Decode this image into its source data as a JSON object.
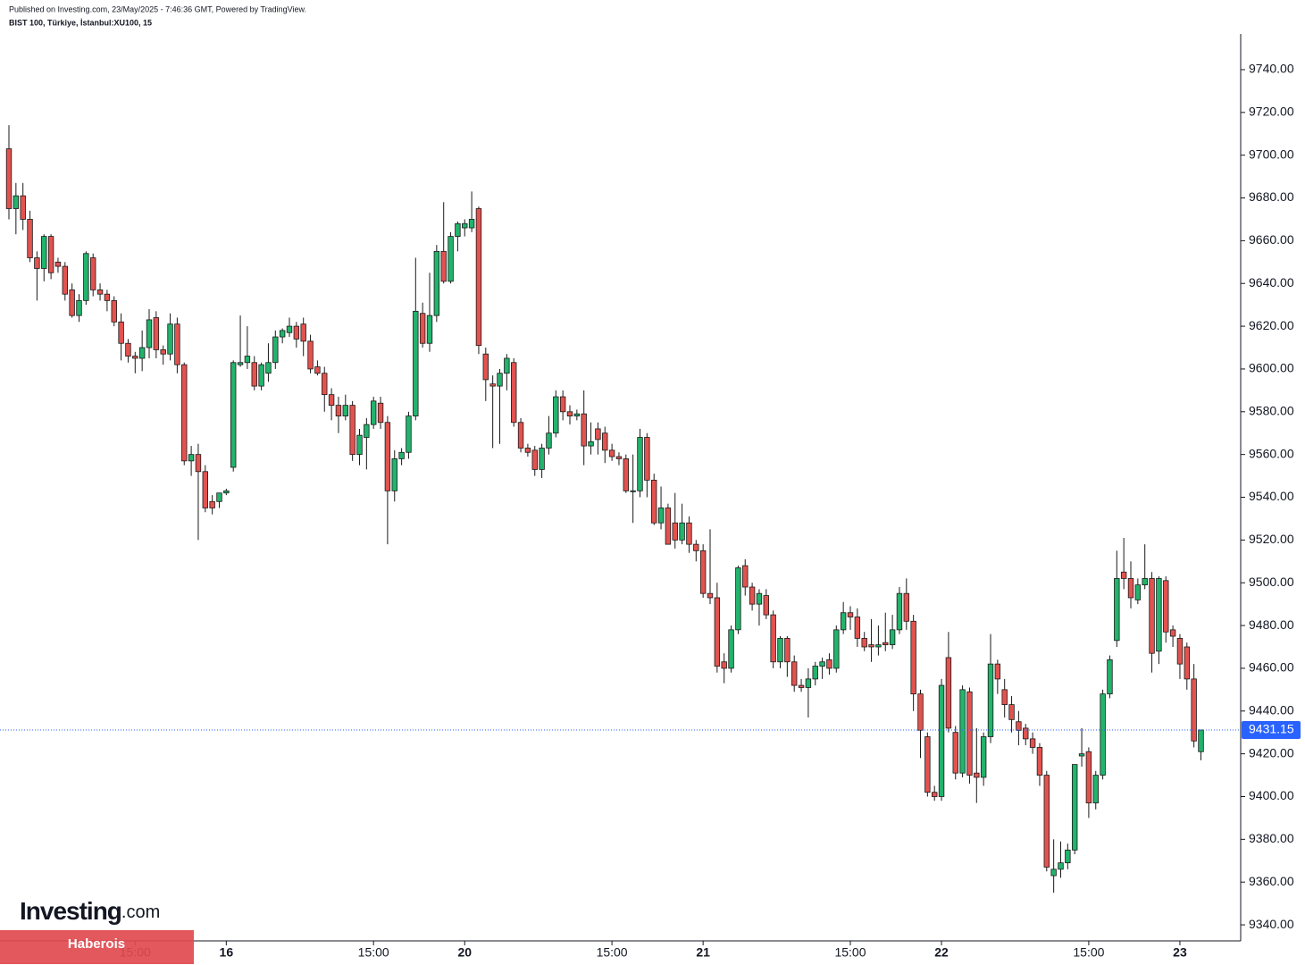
{
  "chart_data": {
    "type": "candlestick",
    "subtitle": "Published on Investing.com, 23/May/2025 - 7:46:36 GMT, Powered by TradingView.",
    "title": "BIST 100, Türkiye, İstanbul:XU100, 15",
    "up_color": "#22b36c",
    "down_color": "#e2534f",
    "border_color": "#1a1a1a",
    "last_price_color": "#2962ff",
    "ylim": [
      9332.5,
      9756.7
    ],
    "yticks": [
      {
        "value": 9340,
        "label": "9340.00"
      },
      {
        "value": 9360,
        "label": "9360.00"
      },
      {
        "value": 9380,
        "label": "9380.00"
      },
      {
        "value": 9400,
        "label": "9400.00"
      },
      {
        "value": 9420,
        "label": "9420.00"
      },
      {
        "value": 9440,
        "label": "9440.00"
      },
      {
        "value": 9460,
        "label": "9460.00"
      },
      {
        "value": 9480,
        "label": "9480.00"
      },
      {
        "value": 9500,
        "label": "9500.00"
      },
      {
        "value": 9520,
        "label": "9520.00"
      },
      {
        "value": 9540,
        "label": "9540.00"
      },
      {
        "value": 9560,
        "label": "9560.00"
      },
      {
        "value": 9580,
        "label": "9580.00"
      },
      {
        "value": 9600,
        "label": "9600.00"
      },
      {
        "value": 9620,
        "label": "9620.00"
      },
      {
        "value": 9640,
        "label": "9640.00"
      },
      {
        "value": 9660,
        "label": "9660.00"
      },
      {
        "value": 9680,
        "label": "9680.00"
      },
      {
        "value": 9700,
        "label": "9700.00"
      },
      {
        "value": 9720,
        "label": "9720.00"
      },
      {
        "value": 9740,
        "label": "9740.00"
      }
    ],
    "categories": [
      null,
      null,
      null,
      null,
      null,
      null,
      null,
      null,
      null,
      null,
      null,
      null,
      null,
      null,
      null,
      null,
      null,
      null,
      "15:00",
      null,
      null,
      null,
      null,
      null,
      null,
      null,
      null,
      null,
      null,
      null,
      null,
      "16",
      null,
      null,
      null,
      null,
      null,
      null,
      null,
      null,
      null,
      null,
      null,
      null,
      null,
      null,
      null,
      null,
      null,
      null,
      null,
      null,
      "15:00",
      null,
      null,
      null,
      null,
      null,
      null,
      null,
      null,
      null,
      null,
      null,
      null,
      "20",
      null,
      null,
      null,
      null,
      null,
      null,
      null,
      null,
      null,
      null,
      null,
      null,
      null,
      null,
      null,
      null,
      null,
      null,
      null,
      null,
      "15:00",
      null,
      null,
      null,
      null,
      null,
      null,
      null,
      null,
      null,
      null,
      null,
      null,
      "21",
      null,
      null,
      null,
      null,
      null,
      null,
      null,
      null,
      null,
      null,
      null,
      null,
      null,
      null,
      null,
      null,
      null,
      null,
      null,
      null,
      "15:00",
      null,
      null,
      null,
      null,
      null,
      null,
      null,
      null,
      null,
      null,
      null,
      null,
      "22",
      null,
      null,
      null,
      null,
      null,
      null,
      null,
      null,
      null,
      null,
      null,
      null,
      null,
      null,
      null,
      null,
      null,
      null,
      null,
      null,
      "15:00",
      null,
      null,
      null,
      null,
      null,
      null,
      null,
      null,
      null,
      null,
      null,
      null,
      "23",
      null,
      null,
      null
    ],
    "ohlc": [
      [
        9703,
        9714,
        9670,
        9675
      ],
      [
        9675,
        9687,
        9663,
        9681
      ],
      [
        9681,
        9687,
        9665,
        9670
      ],
      [
        9670,
        9674,
        9650,
        9652
      ],
      [
        9652,
        9655,
        9632,
        9647
      ],
      [
        9647,
        9663,
        9641,
        9662
      ],
      [
        9662,
        9663,
        9642,
        9645
      ],
      [
        9650,
        9652,
        9645,
        9648
      ],
      [
        9648,
        9650,
        9632,
        9635
      ],
      [
        9637,
        9640,
        9624,
        9625
      ],
      [
        9625,
        9635,
        9622,
        9632
      ],
      [
        9632,
        9655,
        9630,
        9654
      ],
      [
        9652,
        9654,
        9634,
        9637
      ],
      [
        9637,
        9640,
        9632,
        9635
      ],
      [
        9635,
        9637,
        9627,
        9632
      ],
      [
        9632,
        9634,
        9620,
        9622
      ],
      [
        9622,
        9626,
        9604,
        9612
      ],
      [
        9612,
        9614,
        9603,
        9606
      ],
      [
        9606,
        9608,
        9598,
        9605
      ],
      [
        9605,
        9618,
        9599,
        9610
      ],
      [
        9610,
        9628,
        9605,
        9623
      ],
      [
        9624,
        9627,
        9605,
        9609
      ],
      [
        9609,
        9611,
        9602,
        9607
      ],
      [
        9607,
        9626,
        9604,
        9621
      ],
      [
        9621,
        9624,
        9598,
        9602
      ],
      [
        9602,
        9603,
        9555,
        9557
      ],
      [
        9557,
        9564,
        9550,
        9560
      ],
      [
        9560,
        9565,
        9520,
        9552
      ],
      [
        9552,
        9555,
        9533,
        9535
      ],
      [
        9538,
        9541,
        9532,
        9535
      ],
      [
        9538,
        9542,
        9535,
        9542
      ],
      [
        9542,
        9544,
        9541,
        9543
      ],
      [
        9554,
        9604,
        9552,
        9603
      ],
      [
        9602,
        9625,
        9601,
        9603
      ],
      [
        9603,
        9620,
        9600,
        9606
      ],
      [
        9603,
        9606,
        9590,
        9592
      ],
      [
        9592,
        9603,
        9590,
        9602
      ],
      [
        9598,
        9612,
        9594,
        9603
      ],
      [
        9603,
        9618,
        9600,
        9615
      ],
      [
        9615,
        9619,
        9612,
        9618
      ],
      [
        9617,
        9624,
        9615,
        9620
      ],
      [
        9620,
        9622,
        9610,
        9614
      ],
      [
        9621,
        9624,
        9606,
        9613
      ],
      [
        9613,
        9616,
        9598,
        9600
      ],
      [
        9601,
        9604,
        9597,
        9598
      ],
      [
        9598,
        9601,
        9580,
        9588
      ],
      [
        9588,
        9591,
        9576,
        9583
      ],
      [
        9583,
        9587,
        9570,
        9578
      ],
      [
        9578,
        9588,
        9576,
        9583
      ],
      [
        9583,
        9585,
        9557,
        9560
      ],
      [
        9560,
        9572,
        9555,
        9569
      ],
      [
        9568,
        9577,
        9553,
        9574
      ],
      [
        9574,
        9587,
        9572,
        9585
      ],
      [
        9584,
        9587,
        9572,
        9575
      ],
      [
        9575,
        9578,
        9518,
        9543
      ],
      [
        9543,
        9562,
        9538,
        9558
      ],
      [
        9558,
        9563,
        9555,
        9561
      ],
      [
        9561,
        9580,
        9558,
        9578
      ],
      [
        9578,
        9652,
        9576,
        9627
      ],
      [
        9626,
        9631,
        9610,
        9612
      ],
      [
        9612,
        9645,
        9608,
        9625
      ],
      [
        9625,
        9658,
        9622,
        9655
      ],
      [
        9655,
        9678,
        9640,
        9641
      ],
      [
        9641,
        9664,
        9640,
        9662
      ],
      [
        9662,
        9669,
        9655,
        9668
      ],
      [
        9666,
        9670,
        9662,
        9668
      ],
      [
        9666,
        9683,
        9664,
        9670
      ],
      [
        9675,
        9676,
        9607,
        9611
      ],
      [
        9607,
        9610,
        9585,
        9595
      ],
      [
        9593,
        9597,
        9563,
        9592
      ],
      [
        9592,
        9600,
        9565,
        9598
      ],
      [
        9598,
        9607,
        9590,
        9605
      ],
      [
        9603,
        9605,
        9573,
        9575
      ],
      [
        9575,
        9577,
        9561,
        9563
      ],
      [
        9563,
        9565,
        9559,
        9561
      ],
      [
        9562,
        9564,
        9550,
        9553
      ],
      [
        9553,
        9565,
        9549,
        9563
      ],
      [
        9563,
        9578,
        9560,
        9570
      ],
      [
        9570,
        9590,
        9568,
        9587
      ],
      [
        9587,
        9590,
        9576,
        9580
      ],
      [
        9580,
        9583,
        9574,
        9578
      ],
      [
        9578,
        9581,
        9576,
        9579
      ],
      [
        9579,
        9590,
        9555,
        9564
      ],
      [
        9564,
        9575,
        9560,
        9566
      ],
      [
        9572,
        9575,
        9560,
        9567
      ],
      [
        9570,
        9573,
        9556,
        9562
      ],
      [
        9562,
        9565,
        9557,
        9559
      ],
      [
        9559,
        9561,
        9555,
        9558
      ],
      [
        9558,
        9560,
        9542,
        9543
      ],
      [
        9543,
        9560,
        9528,
        9543
      ],
      [
        9543,
        9572,
        9540,
        9568
      ],
      [
        9568,
        9570,
        9540,
        9548
      ],
      [
        9548,
        9551,
        9527,
        9528
      ],
      [
        9528,
        9545,
        9525,
        9535
      ],
      [
        9535,
        9537,
        9518,
        9518
      ],
      [
        9528,
        9542,
        9516,
        9520
      ],
      [
        9520,
        9537,
        9518,
        9528
      ],
      [
        9528,
        9531,
        9514,
        9518
      ],
      [
        9518,
        9520,
        9510,
        9515
      ],
      [
        9515,
        9518,
        9493,
        9495
      ],
      [
        9495,
        9525,
        9490,
        9493
      ],
      [
        9493,
        9500,
        9458,
        9461
      ],
      [
        9463,
        9467,
        9453,
        9460
      ],
      [
        9460,
        9480,
        9458,
        9478
      ],
      [
        9478,
        9508,
        9476,
        9507
      ],
      [
        9508,
        9511,
        9494,
        9498
      ],
      [
        9498,
        9500,
        9487,
        9490
      ],
      [
        9490,
        9497,
        9480,
        9495
      ],
      [
        9494,
        9497,
        9483,
        9485
      ],
      [
        9485,
        9487,
        9460,
        9463
      ],
      [
        9463,
        9475,
        9460,
        9474
      ],
      [
        9474,
        9475,
        9456,
        9463
      ],
      [
        9463,
        9466,
        9449,
        9452
      ],
      [
        9452,
        9455,
        9449,
        9451
      ],
      [
        9451,
        9460,
        9437,
        9455
      ],
      [
        9455,
        9463,
        9452,
        9461
      ],
      [
        9461,
        9465,
        9455,
        9463
      ],
      [
        9464,
        9467,
        9457,
        9460
      ],
      [
        9460,
        9480,
        9458,
        9478
      ],
      [
        9478,
        9491,
        9476,
        9486
      ],
      [
        9486,
        9489,
        9478,
        9484
      ],
      [
        9484,
        9488,
        9470,
        9474
      ],
      [
        9474,
        9477,
        9468,
        9470
      ],
      [
        9471,
        9483,
        9463,
        9470
      ],
      [
        9470,
        9480,
        9466,
        9471
      ],
      [
        9472,
        9486,
        9468,
        9471
      ],
      [
        9471,
        9485,
        9469,
        9478
      ],
      [
        9478,
        9498,
        9476,
        9495
      ],
      [
        9495,
        9502,
        9478,
        9482
      ],
      [
        9482,
        9485,
        9440,
        9448
      ],
      [
        9448,
        9450,
        9418,
        9431
      ],
      [
        9428,
        9430,
        9400,
        9402
      ],
      [
        9402,
        9405,
        9398,
        9400
      ],
      [
        9400,
        9455,
        9398,
        9452
      ],
      [
        9465,
        9477,
        9430,
        9432
      ],
      [
        9430,
        9433,
        9408,
        9411
      ],
      [
        9411,
        9452,
        9409,
        9450
      ],
      [
        9449,
        9451,
        9406,
        9410
      ],
      [
        9411,
        9432,
        9397,
        9409
      ],
      [
        9409,
        9430,
        9405,
        9428
      ],
      [
        9428,
        9476,
        9425,
        9462
      ],
      [
        9462,
        9464,
        9448,
        9455
      ],
      [
        9450,
        9455,
        9437,
        9443
      ],
      [
        9443,
        9447,
        9430,
        9436
      ],
      [
        9435,
        9440,
        9424,
        9431
      ],
      [
        9432,
        9434,
        9424,
        9427
      ],
      [
        9427,
        9430,
        9420,
        9423
      ],
      [
        9423,
        9425,
        9405,
        9410
      ],
      [
        9410,
        9412,
        9365,
        9367
      ],
      [
        9363,
        9380,
        9355,
        9366
      ],
      [
        9366,
        9379,
        9362,
        9369
      ],
      [
        9369,
        9378,
        9366,
        9375
      ],
      [
        9375,
        9415,
        9373,
        9415
      ],
      [
        9419,
        9432,
        9414,
        9420
      ],
      [
        9421,
        9423,
        9390,
        9397
      ],
      [
        9397,
        9412,
        9394,
        9410
      ],
      [
        9410,
        9450,
        9408,
        9448
      ],
      [
        9448,
        9466,
        9446,
        9464
      ],
      [
        9473,
        9515,
        9470,
        9502
      ],
      [
        9505,
        9521,
        9497,
        9502
      ],
      [
        9502,
        9510,
        9488,
        9493
      ],
      [
        9492,
        9502,
        9490,
        9499
      ],
      [
        9499,
        9518,
        9497,
        9502
      ],
      [
        9502,
        9505,
        9458,
        9467
      ],
      [
        9468,
        9503,
        9462,
        9502
      ],
      [
        9501,
        9503,
        9472,
        9477
      ],
      [
        9478,
        9480,
        9470,
        9475
      ],
      [
        9474,
        9476,
        9455,
        9462
      ],
      [
        9470,
        9472,
        9450,
        9455
      ],
      [
        9455,
        9462,
        9423,
        9426
      ],
      [
        9421,
        9431.15,
        9417,
        9431.15
      ]
    ]
  },
  "branding": {
    "logo": "Investing",
    "logo_domain": ".com",
    "banner": "Haberois"
  }
}
